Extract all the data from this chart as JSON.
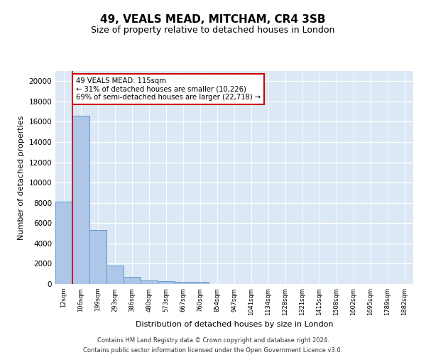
{
  "title": "49, VEALS MEAD, MITCHAM, CR4 3SB",
  "subtitle": "Size of property relative to detached houses in London",
  "xlabel": "Distribution of detached houses by size in London",
  "ylabel": "Number of detached properties",
  "bar_color": "#aec6e8",
  "bar_edge_color": "#6699cc",
  "background_color": "#dce8f5",
  "grid_color": "#ffffff",
  "vline_color": "#cc0000",
  "annotation_text": "49 VEALS MEAD: 115sqm\n← 31% of detached houses are smaller (10,226)\n69% of semi-detached houses are larger (22,718) →",
  "annotation_box_color": "#ffffff",
  "annotation_box_edge": "#cc0000",
  "footer": "Contains HM Land Registry data © Crown copyright and database right 2024.\nContains public sector information licensed under the Open Government Licence v3.0.",
  "bin_labels": [
    "12sqm",
    "106sqm",
    "199sqm",
    "293sqm",
    "386sqm",
    "480sqm",
    "573sqm",
    "667sqm",
    "760sqm",
    "854sqm",
    "947sqm",
    "1041sqm",
    "1134sqm",
    "1228sqm",
    "1321sqm",
    "1415sqm",
    "1508sqm",
    "1602sqm",
    "1695sqm",
    "1789sqm",
    "1882sqm"
  ],
  "bar_values": [
    8100,
    16600,
    5300,
    1850,
    700,
    380,
    280,
    230,
    220,
    0,
    0,
    0,
    0,
    0,
    0,
    0,
    0,
    0,
    0,
    0,
    0
  ],
  "vline_x": 0.5,
  "ylim": [
    0,
    21000
  ],
  "yticks": [
    0,
    2000,
    4000,
    6000,
    8000,
    10000,
    12000,
    14000,
    16000,
    18000,
    20000
  ]
}
